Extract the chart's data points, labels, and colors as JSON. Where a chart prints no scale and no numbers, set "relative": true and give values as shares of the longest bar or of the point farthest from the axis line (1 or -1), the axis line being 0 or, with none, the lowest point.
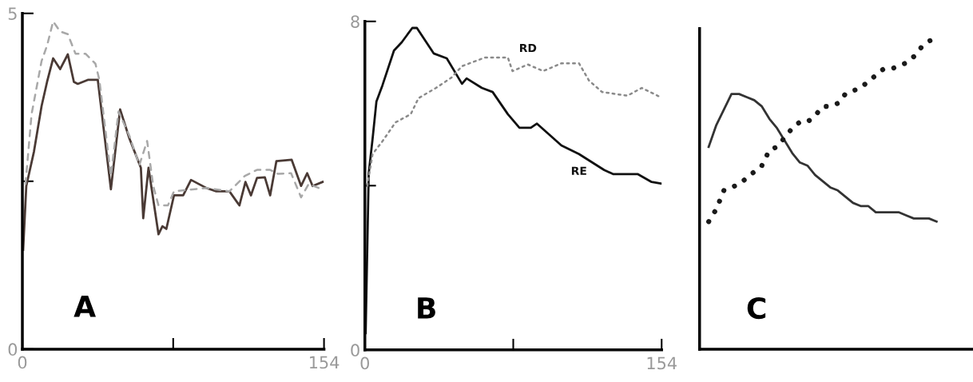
{
  "chart_data": [
    {
      "type": "line",
      "annotations": [
        "A"
      ],
      "xlim": [
        0,
        154
      ],
      "xticks": [
        0,
        {
          "value": 77,
          "label": null
        },
        154
      ],
      "ylim": [
        0,
        5
      ],
      "yticks": [
        0,
        {
          "value": 2.5,
          "label": null
        },
        5
      ],
      "series": [
        {
          "color": "#4a3a35",
          "line_style": "solid",
          "x": [
            0.4,
            2,
            5.9,
            9.8,
            12.6,
            15.7,
            19.3,
            23.2,
            26.3,
            28.3,
            33.4,
            38.5,
            45.2,
            49.9,
            54.6,
            60.5,
            61.7,
            64.4,
            69.5,
            71.5,
            73.5,
            77.4,
            82.1,
            86.1,
            93.9,
            99,
            105.7,
            110.8,
            113.9,
            116.7,
            119.8,
            123.8,
            126.5,
            129.7,
            137.5,
            142.3,
            145.4,
            148.2,
            153.3
          ],
          "values": [
            1.48,
            2.43,
            2.94,
            3.62,
            3.98,
            4.33,
            4.17,
            4.39,
            3.98,
            3.95,
            4.01,
            4.01,
            2.38,
            3.57,
            3.14,
            2.7,
            1.95,
            2.7,
            1.71,
            1.83,
            1.79,
            2.29,
            2.29,
            2.52,
            2.4,
            2.35,
            2.35,
            2.14,
            2.49,
            2.29,
            2.55,
            2.56,
            2.29,
            2.8,
            2.82,
            2.43,
            2.62,
            2.43,
            2.49
          ]
        },
        {
          "color": "#a8a8a8",
          "line_style": "dashed",
          "x": [
            1.6,
            4.7,
            9.8,
            12.6,
            15.7,
            19.3,
            23.2,
            27.1,
            32.2,
            37.3,
            39.3,
            45.2,
            49.1,
            54.6,
            59.7,
            63.7,
            66.8,
            69.5,
            74.3,
            77.4,
            93.9,
            105.7,
            113.6,
            119.8,
            126.5,
            130.5,
            137.2,
            142.3,
            146.2,
            152.9
          ],
          "values": [
            2.46,
            3.5,
            4.29,
            4.52,
            4.88,
            4.73,
            4.69,
            4.4,
            4.4,
            4.25,
            4.01,
            2.58,
            3.54,
            3.18,
            2.74,
            3.1,
            2.43,
            2.14,
            2.14,
            2.35,
            2.4,
            2.35,
            2.58,
            2.67,
            2.67,
            2.61,
            2.62,
            2.26,
            2.46,
            2.38
          ]
        }
      ]
    },
    {
      "type": "line",
      "annotations": [
        "B"
      ],
      "xlim": [
        0,
        154
      ],
      "xticks": [
        0,
        {
          "value": 77,
          "label": null
        },
        154
      ],
      "ylim": [
        0,
        8
      ],
      "yticks": [
        0,
        {
          "value": 4,
          "label": null
        },
        8
      ],
      "series": [
        {
          "name": "RE",
          "color": "#111111",
          "line_style": "solid",
          "x": [
            0.4,
            2,
            4,
            6,
            9.1,
            15.1,
            19.1,
            24.6,
            27,
            35.7,
            42.5,
            50.4,
            52.8,
            60.7,
            66.3,
            74.2,
            80.2,
            86.1,
            89.3,
            102,
            111.1,
            124.2,
            129,
            141.7,
            148.8,
            153.6
          ],
          "values": [
            0.41,
            4.3,
            5.14,
            6.05,
            6.44,
            7.29,
            7.49,
            7.84,
            7.84,
            7.22,
            7.1,
            6.48,
            6.61,
            6.38,
            6.28,
            5.74,
            5.41,
            5.41,
            5.51,
            4.98,
            4.77,
            4.38,
            4.28,
            4.28,
            4.09,
            4.05
          ]
        },
        {
          "name": "RD",
          "color": "#8a8a8a",
          "line_style": "dotted",
          "x": [
            1.2,
            4,
            9.1,
            15.9,
            23.8,
            27.8,
            36.9,
            44.9,
            50.4,
            62.3,
            74.2,
            76.6,
            84.6,
            92.5,
            102,
            111.1,
            116.3,
            123.1,
            136.2,
            143.7,
            153.6
          ],
          "values": [
            3.99,
            4.77,
            5.08,
            5.54,
            5.74,
            6.13,
            6.38,
            6.63,
            6.91,
            7.12,
            7.12,
            6.79,
            6.95,
            6.79,
            6.98,
            6.98,
            6.56,
            6.28,
            6.19,
            6.38,
            6.15
          ]
        }
      ]
    },
    {
      "type": "line",
      "annotations": [
        "C"
      ],
      "relative": true,
      "categories": [
        null,
        null,
        null,
        null,
        null,
        null,
        null,
        null,
        null,
        null,
        null,
        null,
        null,
        null,
        null,
        null,
        null,
        null,
        null,
        null,
        null,
        null,
        null,
        null,
        null,
        null,
        null,
        null,
        null,
        null,
        null
      ],
      "series": [
        {
          "type": "line",
          "color": "#333333",
          "line_style": "solid",
          "values": [
            0.65,
            0.72,
            0.77,
            0.82,
            0.82,
            0.81,
            0.8,
            0.78,
            0.74,
            0.71,
            0.67,
            0.63,
            0.6,
            0.59,
            0.56,
            0.54,
            0.52,
            0.51,
            0.49,
            0.47,
            0.46,
            0.46,
            0.44,
            0.44,
            0.44,
            0.44,
            0.43,
            0.42,
            0.42,
            0.42,
            0.41
          ]
        },
        {
          "type": "line",
          "color": "#1a1a1a",
          "line_style": "dotted",
          "values": [
            0.41,
            0.45,
            0.51,
            0.52,
            0.53,
            0.55,
            0.57,
            0.59,
            0.64,
            0.65,
            0.68,
            0.71,
            0.73,
            0.73,
            0.75,
            0.78,
            0.78,
            0.79,
            0.82,
            0.83,
            0.84,
            0.86,
            0.88,
            0.9,
            0.9,
            0.91,
            0.92,
            0.94,
            0.97,
            0.99,
            1.0
          ]
        }
      ]
    }
  ]
}
